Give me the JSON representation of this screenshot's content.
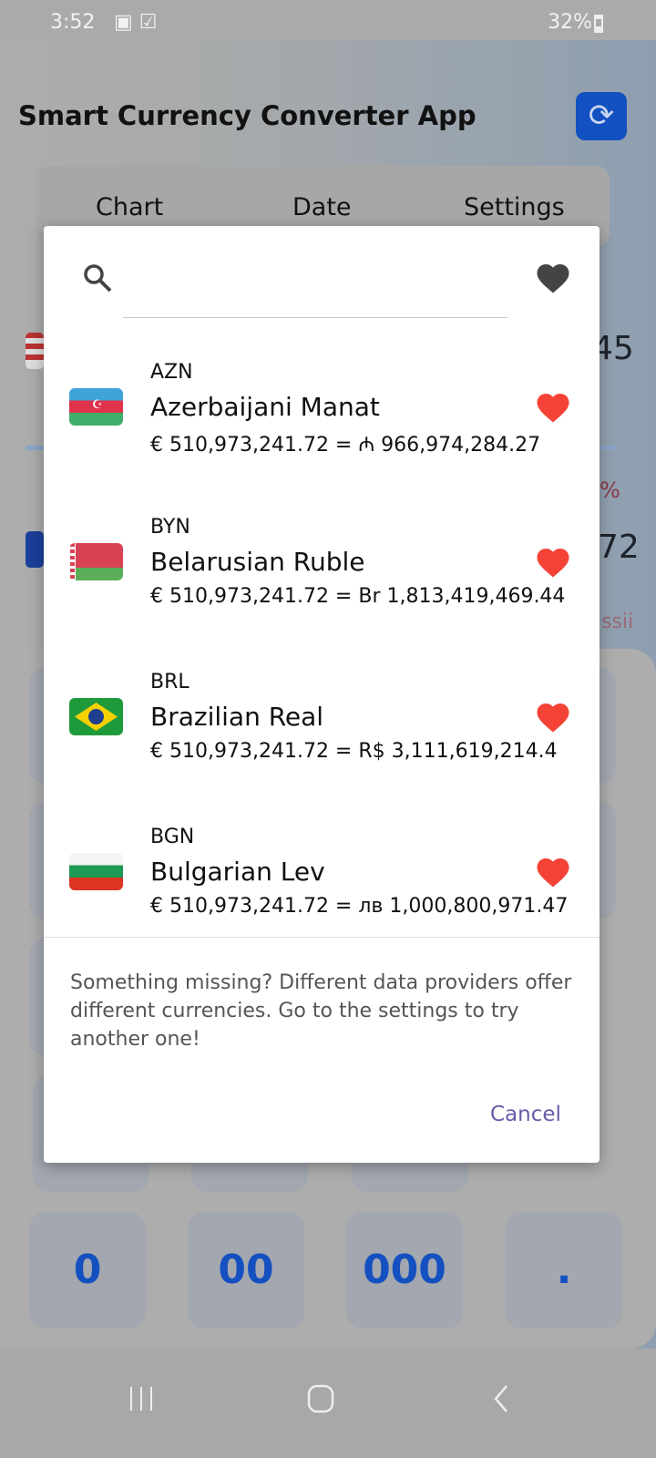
{
  "status_bar": {
    "time": "3:52",
    "battery": "32%"
  },
  "app": {
    "title": "Smart Currency Converter App"
  },
  "tabs": [
    {
      "label": "Chart"
    },
    {
      "label": "Date"
    },
    {
      "label": "Settings"
    }
  ],
  "background_fragments": {
    "amount1": "45",
    "percent": "%",
    "amount2": "72",
    "link": "ssii"
  },
  "keypad": {
    "visible_keys": [
      "0",
      "00",
      "000",
      "."
    ]
  },
  "dialog": {
    "search": {
      "value": "",
      "placeholder": ""
    },
    "items": [
      {
        "code": "AZN",
        "name": "Azerbaijani Manat",
        "conversion": "€ 510,973,241.72 = ₼ 966,974,284.27",
        "favorite": true,
        "flag": "azerbaijan"
      },
      {
        "code": "BYN",
        "name": "Belarusian Ruble",
        "conversion": "€ 510,973,241.72 = Br 1,813,419,469.44",
        "favorite": true,
        "flag": "belarus"
      },
      {
        "code": "BRL",
        "name": "Brazilian Real",
        "conversion": "€ 510,973,241.72 = R$ 3,111,619,214.4",
        "favorite": true,
        "flag": "brazil"
      },
      {
        "code": "BGN",
        "name": "Bulgarian Lev",
        "conversion": "€ 510,973,241.72 = лв 1,000,800,971.47",
        "favorite": true,
        "flag": "bulgaria"
      }
    ],
    "note": "Something missing? Different data providers offer different currencies. Go to the settings to try another one!",
    "cancel_label": "Cancel"
  },
  "colors": {
    "heart": "#f44336",
    "accent": "#1351c2",
    "cancel": "#6a5aa8"
  }
}
